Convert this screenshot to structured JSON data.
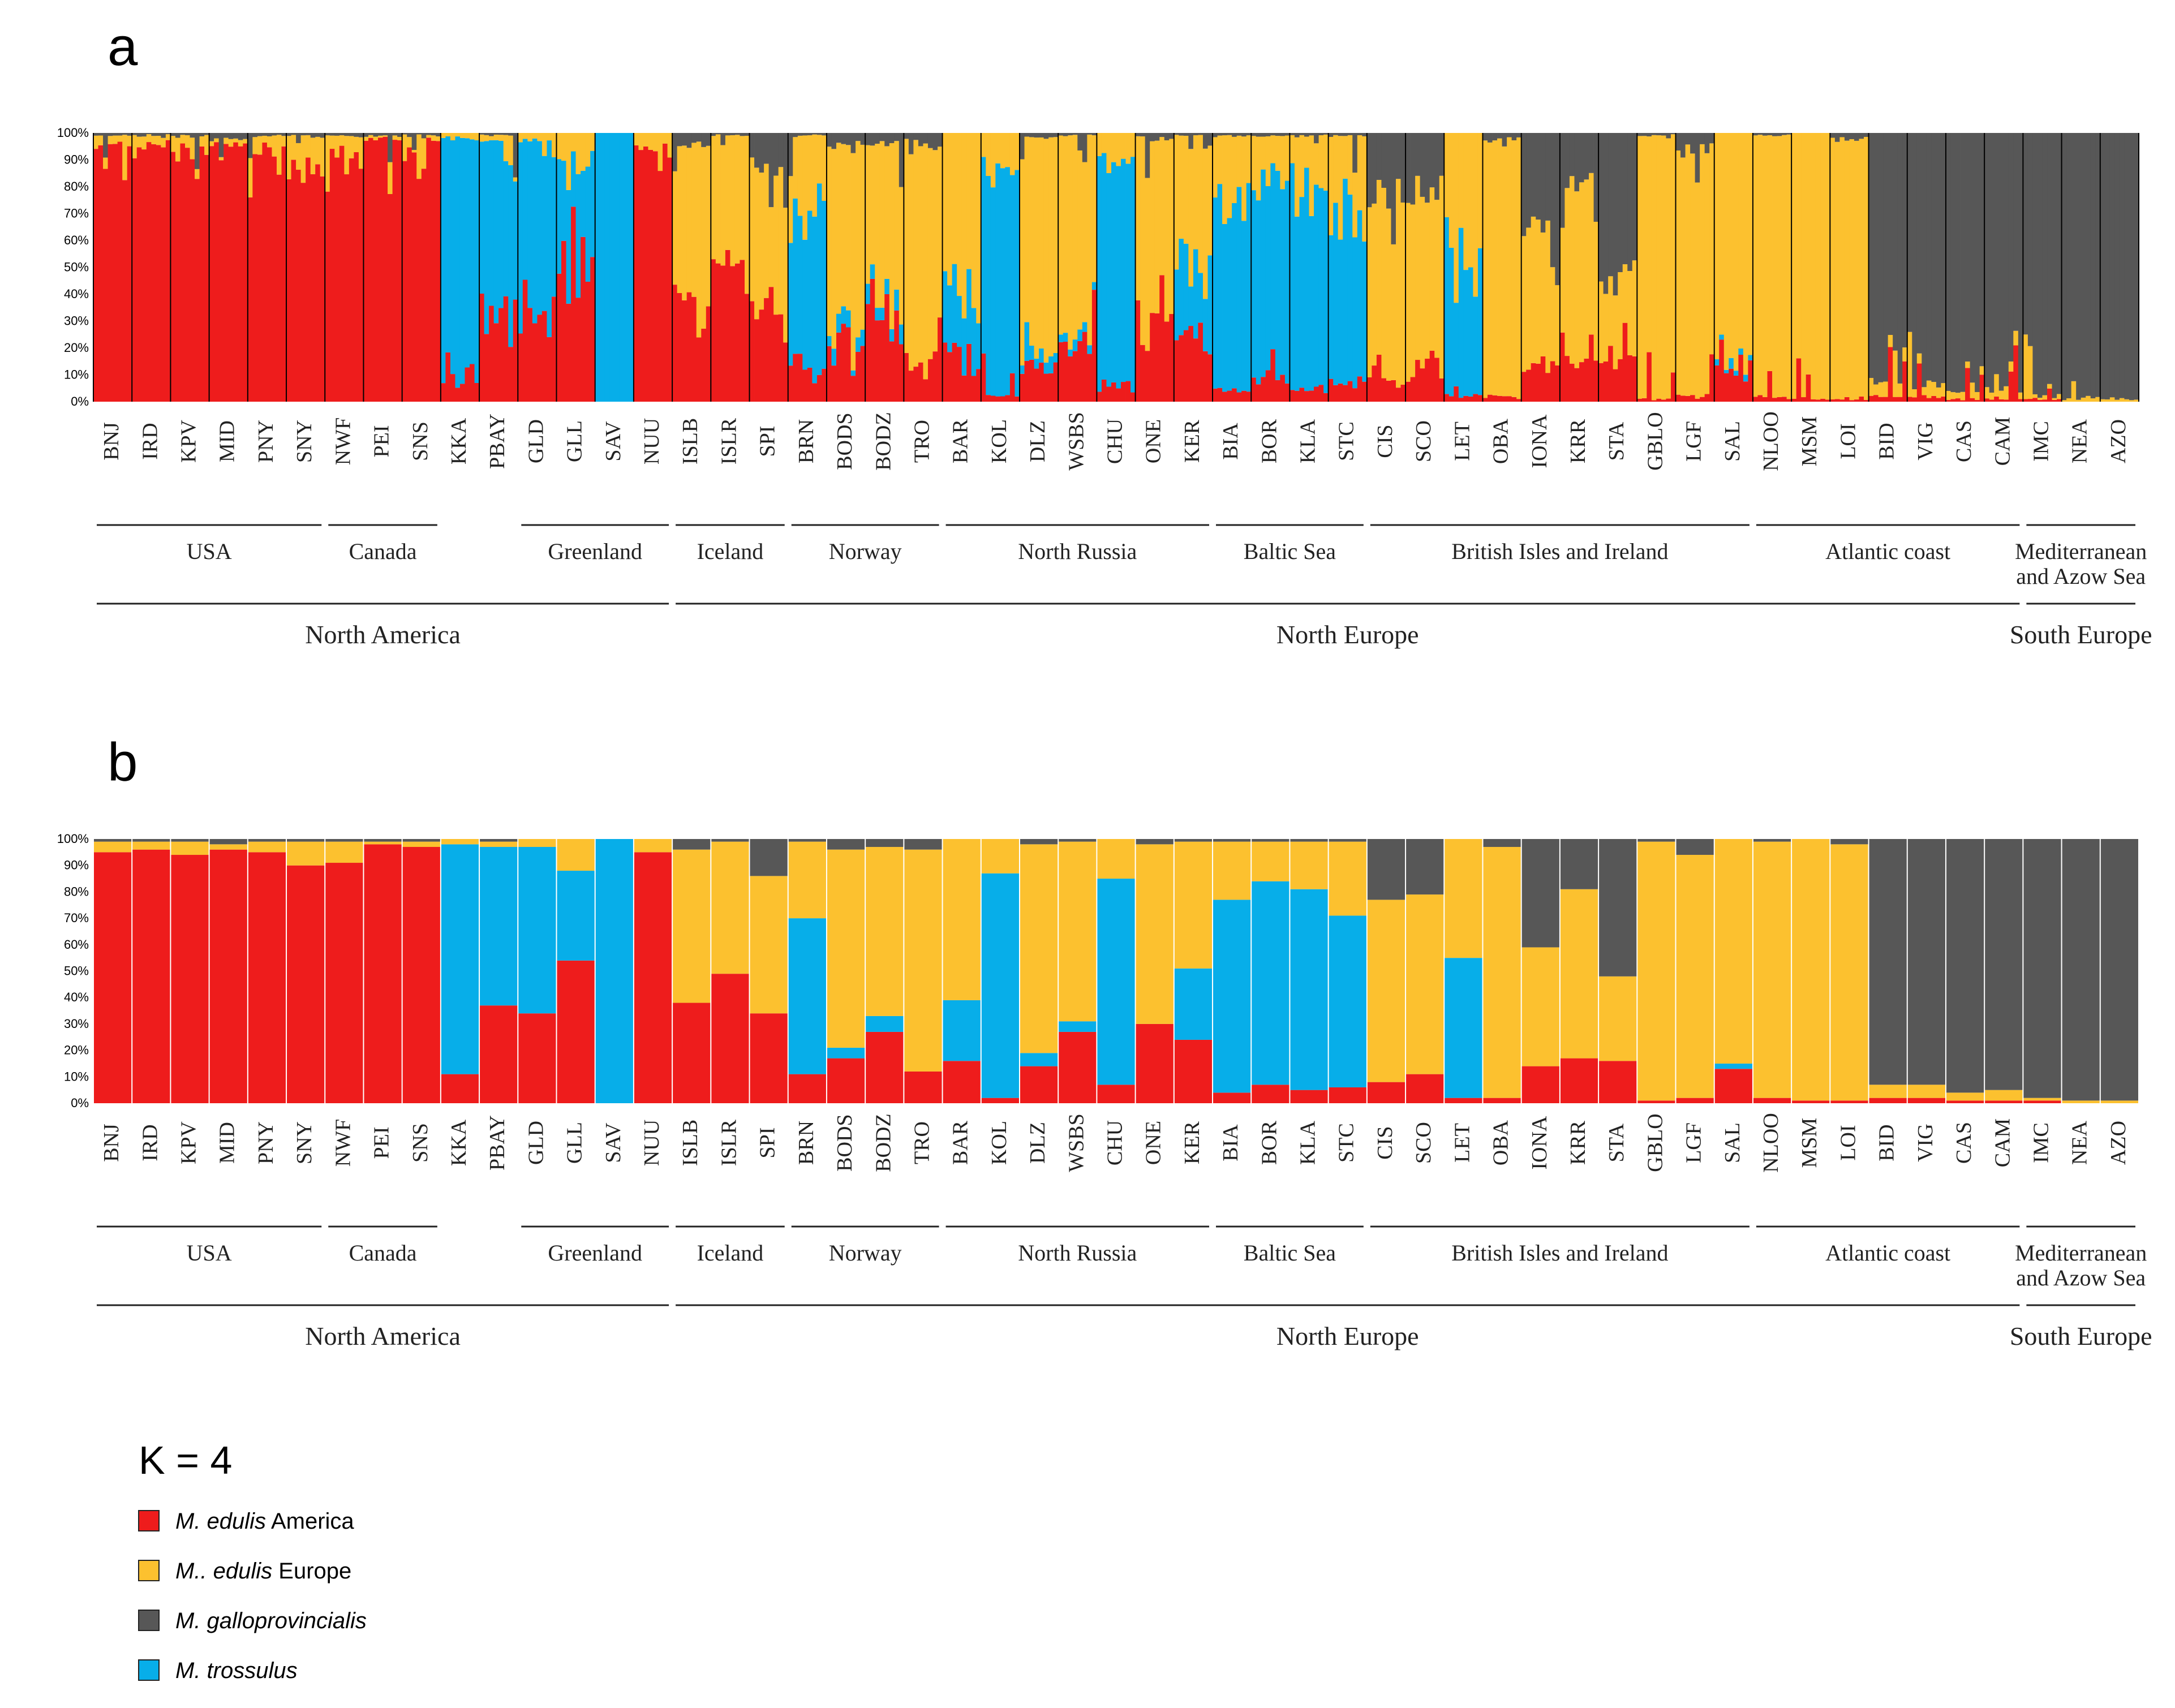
{
  "panels": {
    "a": "a",
    "b": "b"
  },
  "colors": {
    "edulis_america": "#ee1c1c",
    "edulis_europe": "#fcc12f",
    "galloprovincialis": "#575757",
    "trossulus": "#07aee9"
  },
  "legend": {
    "title": "K = 4",
    "items": [
      {
        "key": "edulis_america",
        "italic": "M. edulis",
        "plain": " America"
      },
      {
        "key": "edulis_europe",
        "italic": "M.. edulis",
        "plain": " Europe"
      },
      {
        "key": "galloprovincialis",
        "italic": "M. galloprovincialis",
        "plain": ""
      },
      {
        "key": "trossulus",
        "italic": "M. trossulus",
        "plain": ""
      }
    ]
  },
  "chart_data": {
    "type": "bar",
    "stacked": true,
    "y_ticks": [
      "0%",
      "10%",
      "20%",
      "30%",
      "40%",
      "50%",
      "60%",
      "70%",
      "80%",
      "90%",
      "100%"
    ],
    "ylim": [
      0,
      100
    ],
    "series_order": [
      "edulis_america",
      "trossulus",
      "edulis_europe",
      "galloprovincialis"
    ],
    "populations": [
      {
        "name": "BNJ",
        "am": 95,
        "tr": 0,
        "eu": 4,
        "ga": 1
      },
      {
        "name": "IRD",
        "am": 96,
        "tr": 0,
        "eu": 3,
        "ga": 1
      },
      {
        "name": "KPV",
        "am": 94,
        "tr": 0,
        "eu": 5,
        "ga": 1
      },
      {
        "name": "MID",
        "am": 96,
        "tr": 0,
        "eu": 2,
        "ga": 2
      },
      {
        "name": "PNY",
        "am": 95,
        "tr": 0,
        "eu": 4,
        "ga": 1
      },
      {
        "name": "SNY",
        "am": 90,
        "tr": 0,
        "eu": 9,
        "ga": 1
      },
      {
        "name": "NWF",
        "am": 91,
        "tr": 0,
        "eu": 8,
        "ga": 1
      },
      {
        "name": "PEI",
        "am": 98,
        "tr": 0,
        "eu": 1,
        "ga": 1
      },
      {
        "name": "SNS",
        "am": 97,
        "tr": 0,
        "eu": 2,
        "ga": 1
      },
      {
        "name": "KKA",
        "am": 11,
        "tr": 87,
        "eu": 2,
        "ga": 0
      },
      {
        "name": "PBAY",
        "am": 37,
        "tr": 60,
        "eu": 2,
        "ga": 1
      },
      {
        "name": "GLD",
        "am": 34,
        "tr": 63,
        "eu": 3,
        "ga": 0
      },
      {
        "name": "GLL",
        "am": 54,
        "tr": 34,
        "eu": 12,
        "ga": 0
      },
      {
        "name": "SAV",
        "am": 0,
        "tr": 100,
        "eu": 0,
        "ga": 0
      },
      {
        "name": "NUU",
        "am": 95,
        "tr": 0,
        "eu": 5,
        "ga": 0
      },
      {
        "name": "ISLB",
        "am": 38,
        "tr": 0,
        "eu": 58,
        "ga": 4
      },
      {
        "name": "ISLR",
        "am": 49,
        "tr": 0,
        "eu": 50,
        "ga": 1
      },
      {
        "name": "SPI",
        "am": 34,
        "tr": 0,
        "eu": 52,
        "ga": 14
      },
      {
        "name": "BRN",
        "am": 11,
        "tr": 59,
        "eu": 29,
        "ga": 1
      },
      {
        "name": "BODS",
        "am": 17,
        "tr": 4,
        "eu": 75,
        "ga": 4
      },
      {
        "name": "BODZ",
        "am": 27,
        "tr": 6,
        "eu": 64,
        "ga": 3
      },
      {
        "name": "TRO",
        "am": 12,
        "tr": 0,
        "eu": 84,
        "ga": 4
      },
      {
        "name": "BAR",
        "am": 16,
        "tr": 23,
        "eu": 61,
        "ga": 0
      },
      {
        "name": "KOL",
        "am": 2,
        "tr": 85,
        "eu": 13,
        "ga": 0
      },
      {
        "name": "DLZ",
        "am": 14,
        "tr": 5,
        "eu": 79,
        "ga": 2
      },
      {
        "name": "WSBS",
        "am": 27,
        "tr": 4,
        "eu": 68,
        "ga": 1
      },
      {
        "name": "CHU",
        "am": 7,
        "tr": 78,
        "eu": 15,
        "ga": 0
      },
      {
        "name": "ONE",
        "am": 30,
        "tr": 0,
        "eu": 68,
        "ga": 2
      },
      {
        "name": "KER",
        "am": 24,
        "tr": 27,
        "eu": 48,
        "ga": 1
      },
      {
        "name": "BIA",
        "am": 4,
        "tr": 73,
        "eu": 22,
        "ga": 1
      },
      {
        "name": "BOR",
        "am": 7,
        "tr": 77,
        "eu": 15,
        "ga": 1
      },
      {
        "name": "KLA",
        "am": 5,
        "tr": 76,
        "eu": 18,
        "ga": 1
      },
      {
        "name": "STC",
        "am": 6,
        "tr": 65,
        "eu": 28,
        "ga": 1
      },
      {
        "name": "CIS",
        "am": 8,
        "tr": 0,
        "eu": 69,
        "ga": 23
      },
      {
        "name": "SCO",
        "am": 11,
        "tr": 0,
        "eu": 68,
        "ga": 21
      },
      {
        "name": "LET",
        "am": 2,
        "tr": 53,
        "eu": 45,
        "ga": 0
      },
      {
        "name": "OBA",
        "am": 2,
        "tr": 0,
        "eu": 95,
        "ga": 3
      },
      {
        "name": "IONA",
        "am": 14,
        "tr": 0,
        "eu": 45,
        "ga": 41
      },
      {
        "name": "KRR",
        "am": 17,
        "tr": 0,
        "eu": 64,
        "ga": 19
      },
      {
        "name": "STA",
        "am": 16,
        "tr": 0,
        "eu": 32,
        "ga": 52
      },
      {
        "name": "GBLO",
        "am": 1,
        "tr": 0,
        "eu": 98,
        "ga": 1
      },
      {
        "name": "LGF",
        "am": 2,
        "tr": 0,
        "eu": 92,
        "ga": 6
      },
      {
        "name": "SAL",
        "am": 13,
        "tr": 2,
        "eu": 85,
        "ga": 0
      },
      {
        "name": "NLOO",
        "am": 2,
        "tr": 0,
        "eu": 97,
        "ga": 1
      },
      {
        "name": "MSM",
        "am": 1,
        "tr": 0,
        "eu": 99,
        "ga": 0
      },
      {
        "name": "LOI",
        "am": 1,
        "tr": 0,
        "eu": 97,
        "ga": 2
      },
      {
        "name": "BID",
        "am": 2,
        "tr": 0,
        "eu": 5,
        "ga": 93
      },
      {
        "name": "VIG",
        "am": 2,
        "tr": 0,
        "eu": 5,
        "ga": 93
      },
      {
        "name": "CAS",
        "am": 1,
        "tr": 0,
        "eu": 3,
        "ga": 96
      },
      {
        "name": "CAM",
        "am": 1,
        "tr": 0,
        "eu": 4,
        "ga": 95
      },
      {
        "name": "IMC",
        "am": 1,
        "tr": 0,
        "eu": 1,
        "ga": 98
      },
      {
        "name": "NEA",
        "am": 0,
        "tr": 0,
        "eu": 1,
        "ga": 99
      },
      {
        "name": "AZO",
        "am": 0,
        "tr": 0,
        "eu": 1,
        "ga": 99
      }
    ],
    "regions": [
      {
        "label": "USA",
        "from": 0,
        "to": 5
      },
      {
        "label": "Canada",
        "from": 6,
        "to": 8
      },
      {
        "label": "Greenland",
        "from": 11,
        "to": 14
      },
      {
        "label": "Iceland",
        "from": 15,
        "to": 17
      },
      {
        "label": "Norway",
        "from": 18,
        "to": 21
      },
      {
        "label": "North Russia",
        "from": 22,
        "to": 28
      },
      {
        "label": "Baltic Sea",
        "from": 29,
        "to": 32
      },
      {
        "label": "British Isles and Ireland",
        "from": 33,
        "to": 42
      },
      {
        "label": "Atlantic coast",
        "from": 43,
        "to": 49
      },
      {
        "label": "Mediterranean\nand Azow Sea",
        "from": 50,
        "to": 52
      }
    ],
    "groups": [
      {
        "label": "North America",
        "from": 0,
        "to": 14
      },
      {
        "label": "North Europe",
        "from": 15,
        "to": 49
      },
      {
        "label": "South Europe",
        "from": 50,
        "to": 52
      }
    ]
  }
}
